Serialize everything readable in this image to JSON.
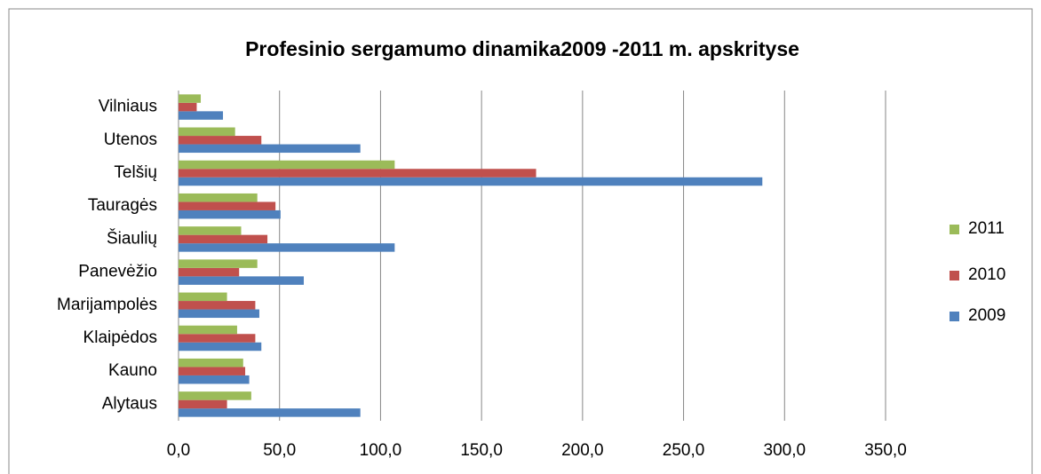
{
  "chart_data": {
    "type": "barh",
    "title": "Profesinio sergamumo dinamika2009 -2011 m. apskrityse",
    "categories": [
      "Alytaus",
      "Kauno",
      "Klaipėdos",
      "Marijampolės",
      "Panevėžio",
      "Šiaulių",
      "Tauragės",
      "Telšių",
      "Utenos",
      "Vilniaus"
    ],
    "series": [
      {
        "name": "2009",
        "color": "#4f81bd",
        "values": [
          90,
          35,
          41,
          40,
          62,
          107,
          50.5,
          289,
          90,
          22
        ]
      },
      {
        "name": "2010",
        "color": "#c0504d",
        "values": [
          24,
          33,
          38,
          38,
          30,
          44,
          48,
          177,
          41,
          9
        ]
      },
      {
        "name": "2011",
        "color": "#9bbb59",
        "values": [
          36,
          32,
          29,
          24,
          39,
          31,
          39,
          107,
          28,
          11
        ]
      }
    ],
    "xlim": [
      0,
      350
    ],
    "xticks": [
      {
        "value": 0,
        "label": "0,0"
      },
      {
        "value": 50,
        "label": "50,0"
      },
      {
        "value": 100,
        "label": "100,0"
      },
      {
        "value": 150,
        "label": "150,0"
      },
      {
        "value": 200,
        "label": "200,0"
      },
      {
        "value": 250,
        "label": "250,0"
      },
      {
        "value": 300,
        "label": "300,0"
      },
      {
        "value": 350,
        "label": "350,0"
      }
    ],
    "grid": true,
    "legend": "right"
  }
}
